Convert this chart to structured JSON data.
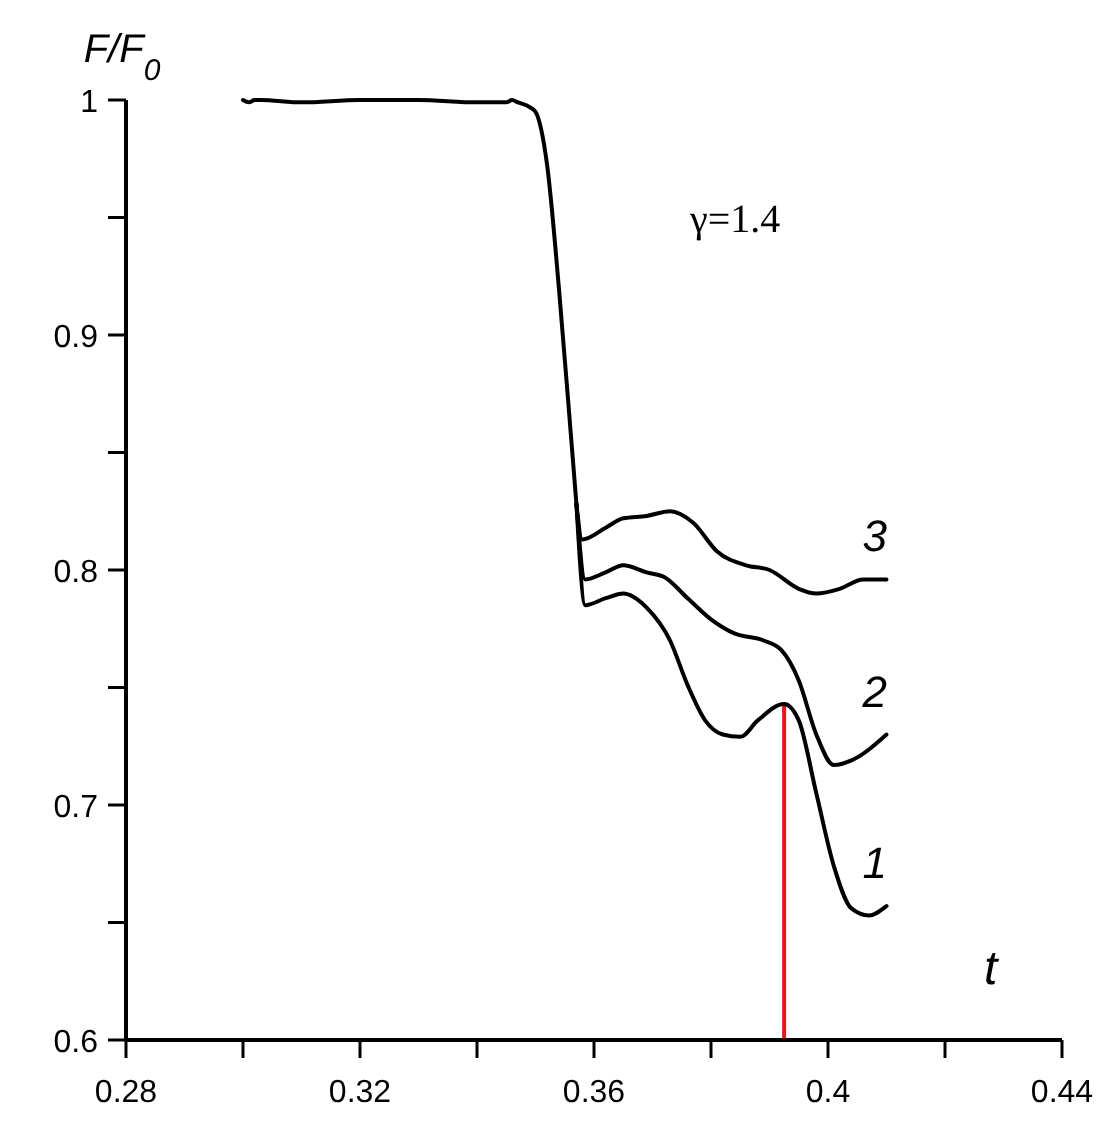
{
  "chart_data": {
    "type": "line",
    "xlabel": "t",
    "ylabel": "F/F$_{0}$",
    "annotations": [
      "γ=1.4"
    ],
    "xlim": [
      0.28,
      0.44
    ],
    "ylim": [
      0.6,
      1.0
    ],
    "xticks": [
      0.28,
      {
        "value": 0.3,
        "label": null
      },
      0.32,
      {
        "value": 0.34,
        "label": null
      },
      0.36,
      {
        "value": 0.38,
        "label": null
      },
      0.4,
      {
        "value": 0.42,
        "label": null
      },
      0.44
    ],
    "yticks": [
      0.6,
      {
        "value": 0.65,
        "label": null
      },
      0.7,
      {
        "value": 0.75,
        "label": null
      },
      0.8,
      {
        "value": 0.85,
        "label": null
      },
      0.9,
      {
        "value": 0.95,
        "label": null
      },
      1
    ],
    "grid": false,
    "marker": "none",
    "line_style": "solid",
    "ref_lines": [
      {
        "axis": "x",
        "value": 0.3925,
        "color": "#e8141c"
      }
    ],
    "series": [
      {
        "color": "#000000",
        "x": [
          0.3,
          0.301,
          0.302,
          0.303,
          0.31,
          0.32,
          0.33,
          0.34,
          0.345,
          0.346,
          0.347,
          0.349,
          0.35,
          0.352,
          0.354,
          0.356,
          0.357
        ],
        "values": [
          1.0,
          0.999,
          1.0,
          1.0,
          0.999,
          1.0,
          1.0,
          0.999,
          0.999,
          1.0,
          0.999,
          0.997,
          0.995,
          0.972,
          0.92,
          0.859,
          0.828
        ]
      },
      {
        "name": "1",
        "color": "#000000",
        "x": [
          0.357,
          0.3585,
          0.362,
          0.365,
          0.369,
          0.373,
          0.376,
          0.379,
          0.382,
          0.385,
          0.388,
          0.3925,
          0.395,
          0.398,
          0.401,
          0.404,
          0.407,
          0.41
        ],
        "values": [
          0.828,
          0.785,
          0.788,
          0.79,
          0.784,
          0.77,
          0.751,
          0.736,
          0.73,
          0.729,
          0.736,
          0.743,
          0.736,
          0.705,
          0.674,
          0.656,
          0.653,
          0.657
        ]
      },
      {
        "name": "2",
        "color": "#000000",
        "x": [
          0.357,
          0.3585,
          0.362,
          0.365,
          0.369,
          0.372,
          0.376,
          0.38,
          0.384,
          0.389,
          0.392,
          0.395,
          0.398,
          0.401,
          0.404,
          0.41
        ],
        "values": [
          0.828,
          0.796,
          0.799,
          0.802,
          0.799,
          0.797,
          0.788,
          0.779,
          0.773,
          0.77,
          0.766,
          0.753,
          0.73,
          0.717,
          0.719,
          0.73
        ]
      },
      {
        "name": "3",
        "color": "#000000",
        "x": [
          0.357,
          0.358,
          0.362,
          0.365,
          0.369,
          0.373,
          0.377,
          0.381,
          0.386,
          0.39,
          0.395,
          0.398,
          0.402,
          0.406,
          0.41
        ],
        "values": [
          0.828,
          0.813,
          0.818,
          0.822,
          0.823,
          0.825,
          0.82,
          0.808,
          0.802,
          0.8,
          0.792,
          0.79,
          0.792,
          0.796,
          0.796
        ]
      }
    ]
  }
}
